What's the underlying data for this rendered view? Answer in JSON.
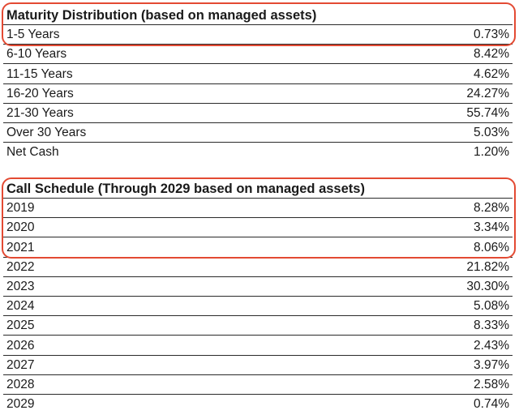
{
  "maturity": {
    "title": "Maturity Distribution (based on managed assets)",
    "rows": [
      {
        "label": "1-5 Years",
        "value": "0.73%"
      },
      {
        "label": "6-10 Years",
        "value": "8.42%"
      },
      {
        "label": "11-15 Years",
        "value": "4.62%"
      },
      {
        "label": "16-20 Years",
        "value": "24.27%"
      },
      {
        "label": "21-30 Years",
        "value": "55.74%"
      },
      {
        "label": "Over 30 Years",
        "value": "5.03%"
      },
      {
        "label": "Net Cash",
        "value": "1.20%"
      }
    ]
  },
  "call_schedule": {
    "title": "Call Schedule (Through 2029 based on managed assets)",
    "rows": [
      {
        "label": "2019",
        "value": "8.28%"
      },
      {
        "label": "2020",
        "value": "3.34%"
      },
      {
        "label": "2021",
        "value": "8.06%"
      },
      {
        "label": "2022",
        "value": "21.82%"
      },
      {
        "label": "2023",
        "value": "30.30%"
      },
      {
        "label": "2024",
        "value": "5.08%"
      },
      {
        "label": "2025",
        "value": "8.33%"
      },
      {
        "label": "2026",
        "value": "2.43%"
      },
      {
        "label": "2027",
        "value": "3.97%"
      },
      {
        "label": "2028",
        "value": "2.58%"
      },
      {
        "label": "2029",
        "value": "0.74%"
      }
    ]
  },
  "highlight_color": "#e34a33"
}
